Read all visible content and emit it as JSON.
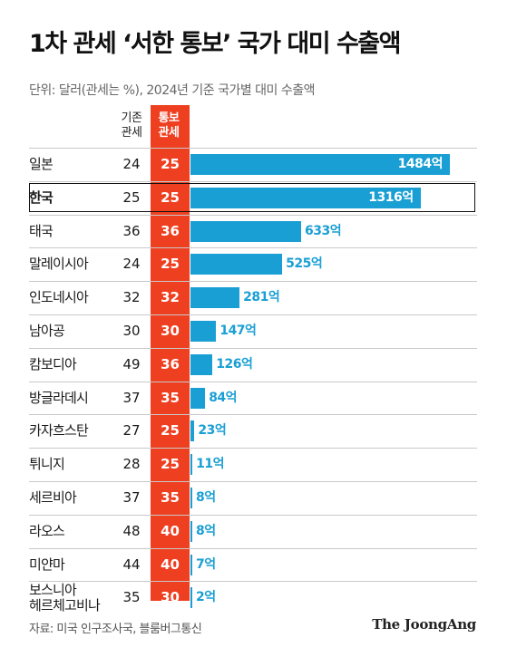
{
  "title": "1차 관세 ‘서한 통보’ 국가 대미 수출액",
  "subtitle": "단위: 달러(관세는 %), 2024년 기준 국가별 대미 수출액",
  "headers": {
    "base": "기존\n관세",
    "new": "통보\n관세"
  },
  "source": "자료: 미국 인구조사국, 블룸버그통신",
  "brand": "The JoongAng",
  "colors": {
    "bar": "#1a9fd4",
    "tariff_column": "#ee3f21"
  },
  "chart_data": {
    "type": "bar",
    "orientation": "horizontal",
    "title": "1차 관세 ‘서한 통보’ 국가 대미 수출액",
    "unit": "억 달러",
    "highlight": "한국",
    "rows": [
      {
        "country": "일본",
        "base_tariff": 24,
        "new_tariff": 25,
        "export": 1484,
        "label": "1484억"
      },
      {
        "country": "한국",
        "base_tariff": 25,
        "new_tariff": 25,
        "export": 1316,
        "label": "1316억"
      },
      {
        "country": "태국",
        "base_tariff": 36,
        "new_tariff": 36,
        "export": 633,
        "label": "633억"
      },
      {
        "country": "말레이시아",
        "base_tariff": 24,
        "new_tariff": 25,
        "export": 525,
        "label": "525억"
      },
      {
        "country": "인도네시아",
        "base_tariff": 32,
        "new_tariff": 32,
        "export": 281,
        "label": "281억"
      },
      {
        "country": "남아공",
        "base_tariff": 30,
        "new_tariff": 30,
        "export": 147,
        "label": "147억"
      },
      {
        "country": "캄보디아",
        "base_tariff": 49,
        "new_tariff": 36,
        "export": 126,
        "label": "126억"
      },
      {
        "country": "방글라데시",
        "base_tariff": 37,
        "new_tariff": 35,
        "export": 84,
        "label": "84억"
      },
      {
        "country": "카자흐스탄",
        "base_tariff": 27,
        "new_tariff": 25,
        "export": 23,
        "label": "23억"
      },
      {
        "country": "튀니지",
        "base_tariff": 28,
        "new_tariff": 25,
        "export": 11,
        "label": "11억"
      },
      {
        "country": "세르비아",
        "base_tariff": 37,
        "new_tariff": 35,
        "export": 8,
        "label": "8억"
      },
      {
        "country": "라오스",
        "base_tariff": 48,
        "new_tariff": 40,
        "export": 8,
        "label": "8억"
      },
      {
        "country": "미얀마",
        "base_tariff": 44,
        "new_tariff": 40,
        "export": 7,
        "label": "7억"
      },
      {
        "country": "보스니아\n헤르체고비나",
        "base_tariff": 35,
        "new_tariff": 30,
        "export": 2,
        "label": "2억"
      }
    ]
  }
}
